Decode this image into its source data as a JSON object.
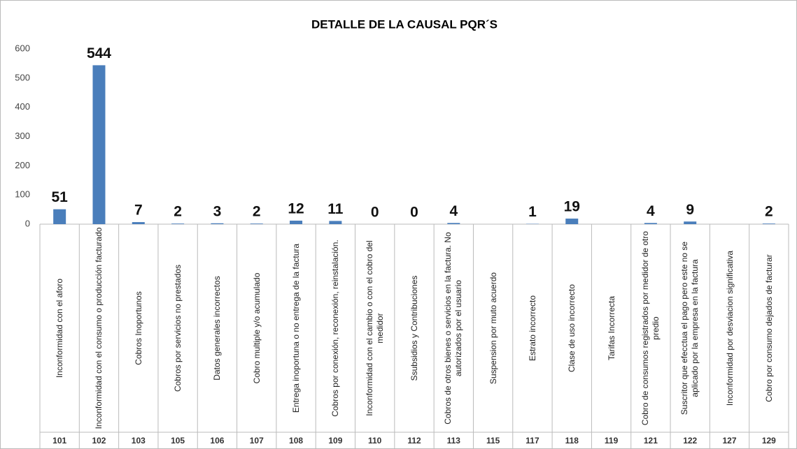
{
  "chart_data": {
    "type": "bar",
    "title": "DETALLE DE LA CAUSAL PQR´S",
    "categories": [
      "Inconformidad con el aforo",
      "Inconformidad con el consumo o producción facturado",
      "Cobros Inoportunos",
      "Cobros por servicios no prestados",
      "Datos generales incorrectos",
      "Cobro multiple y/o acumulado",
      "Entrega inoportuna o no entrega de la factura",
      "Cobros por conexión, reconexión, reinstalación.",
      "Inconformidad con el cambio o con el cobro del medidor",
      "Ssubsidios y Contribuciones",
      "Cobros de otros bienes o servicios en la factura. No autorizados  por el usuario",
      "Suspension por muto acuerdo",
      "Estrato incorrecto",
      "Clase de uso incorrecto",
      "Tarifas Incorrecta",
      "Cobro de consumos registrados por medidor de otro predio",
      "Suscritor que efecctua el pago pero este no se aplicado por la empresa en la factura",
      "Inconformidad por desviacion significativa",
      "Cobro por consumo dejados de facturar"
    ],
    "codes": [
      101,
      102,
      103,
      105,
      106,
      107,
      108,
      109,
      110,
      112,
      113,
      115,
      117,
      118,
      119,
      121,
      122,
      127,
      129
    ],
    "values": [
      51,
      544,
      7,
      2,
      3,
      2,
      12,
      11,
      0,
      0,
      4,
      null,
      1,
      19,
      null,
      4,
      9,
      null,
      2
    ],
    "color": "#4a7ebb",
    "ylim": [
      0,
      600
    ],
    "yticks": [
      0,
      100,
      200,
      300,
      400,
      500,
      600
    ],
    "grid": false
  }
}
